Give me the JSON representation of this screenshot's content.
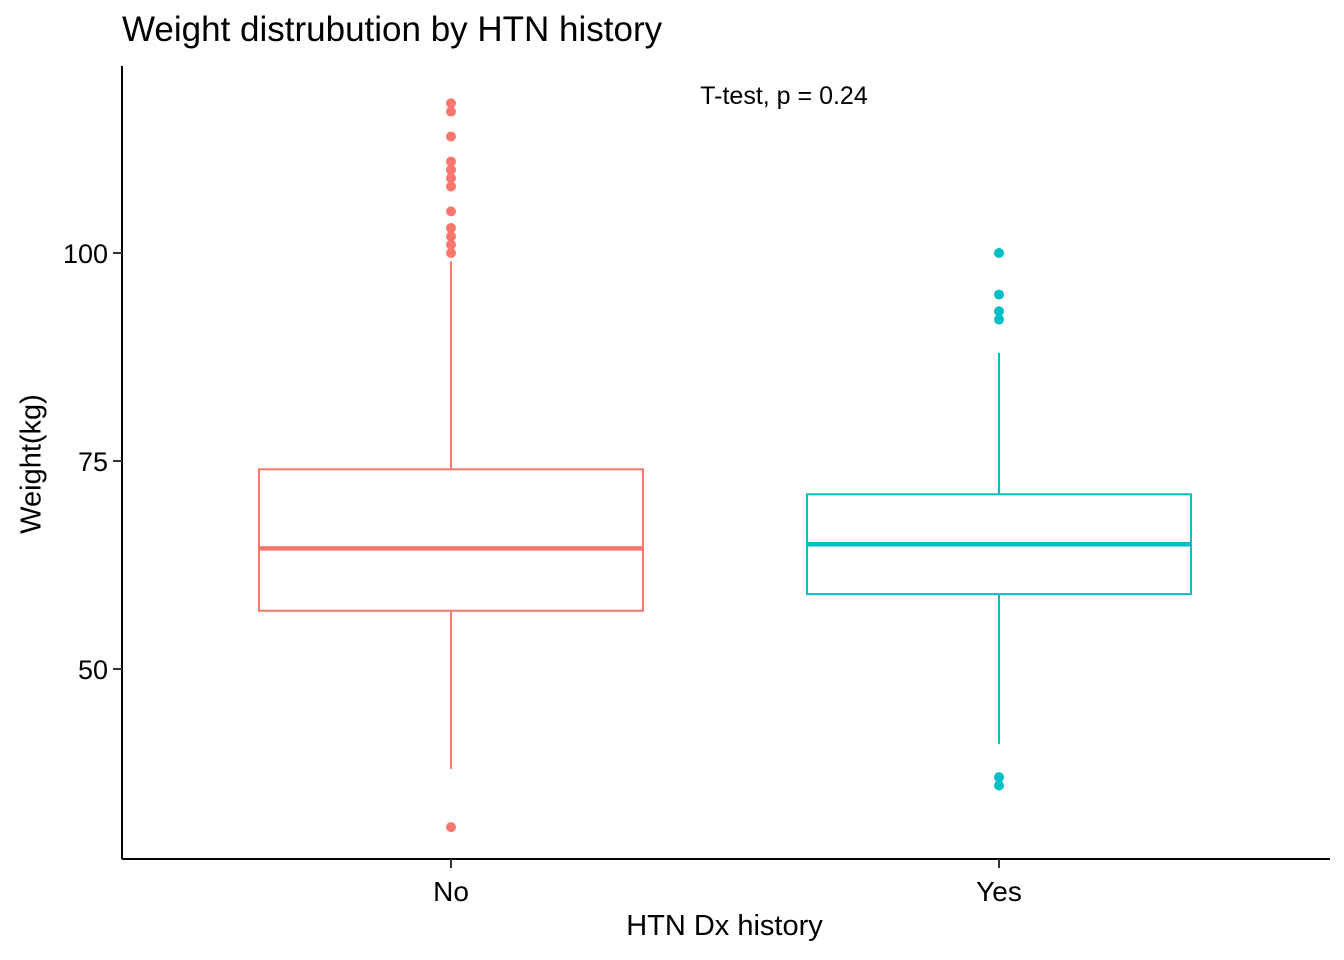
{
  "chart_data": {
    "type": "box",
    "title": "Weight distrubution by HTN history",
    "xlabel": "HTN Dx history",
    "ylabel": "Weight(kg)",
    "annotation": "T-test, p = 0.24",
    "ylim": [
      27,
      122
    ],
    "yticks": [
      50,
      75,
      100
    ],
    "grid": false,
    "legend": "none",
    "groups": [
      {
        "category": "No",
        "color": "#F8766D",
        "whisker_low": 38,
        "q1": 57,
        "median": 64.5,
        "q3": 74,
        "whisker_high": 99,
        "outliers": [
          31,
          100,
          101,
          102,
          103,
          105,
          108,
          109,
          110,
          111,
          114,
          117,
          118
        ]
      },
      {
        "category": "Yes",
        "color": "#00BFC4",
        "whisker_low": 41,
        "q1": 59,
        "median": 65,
        "q3": 71,
        "whisker_high": 88,
        "outliers": [
          36,
          37,
          92,
          93,
          95,
          100
        ]
      }
    ]
  }
}
